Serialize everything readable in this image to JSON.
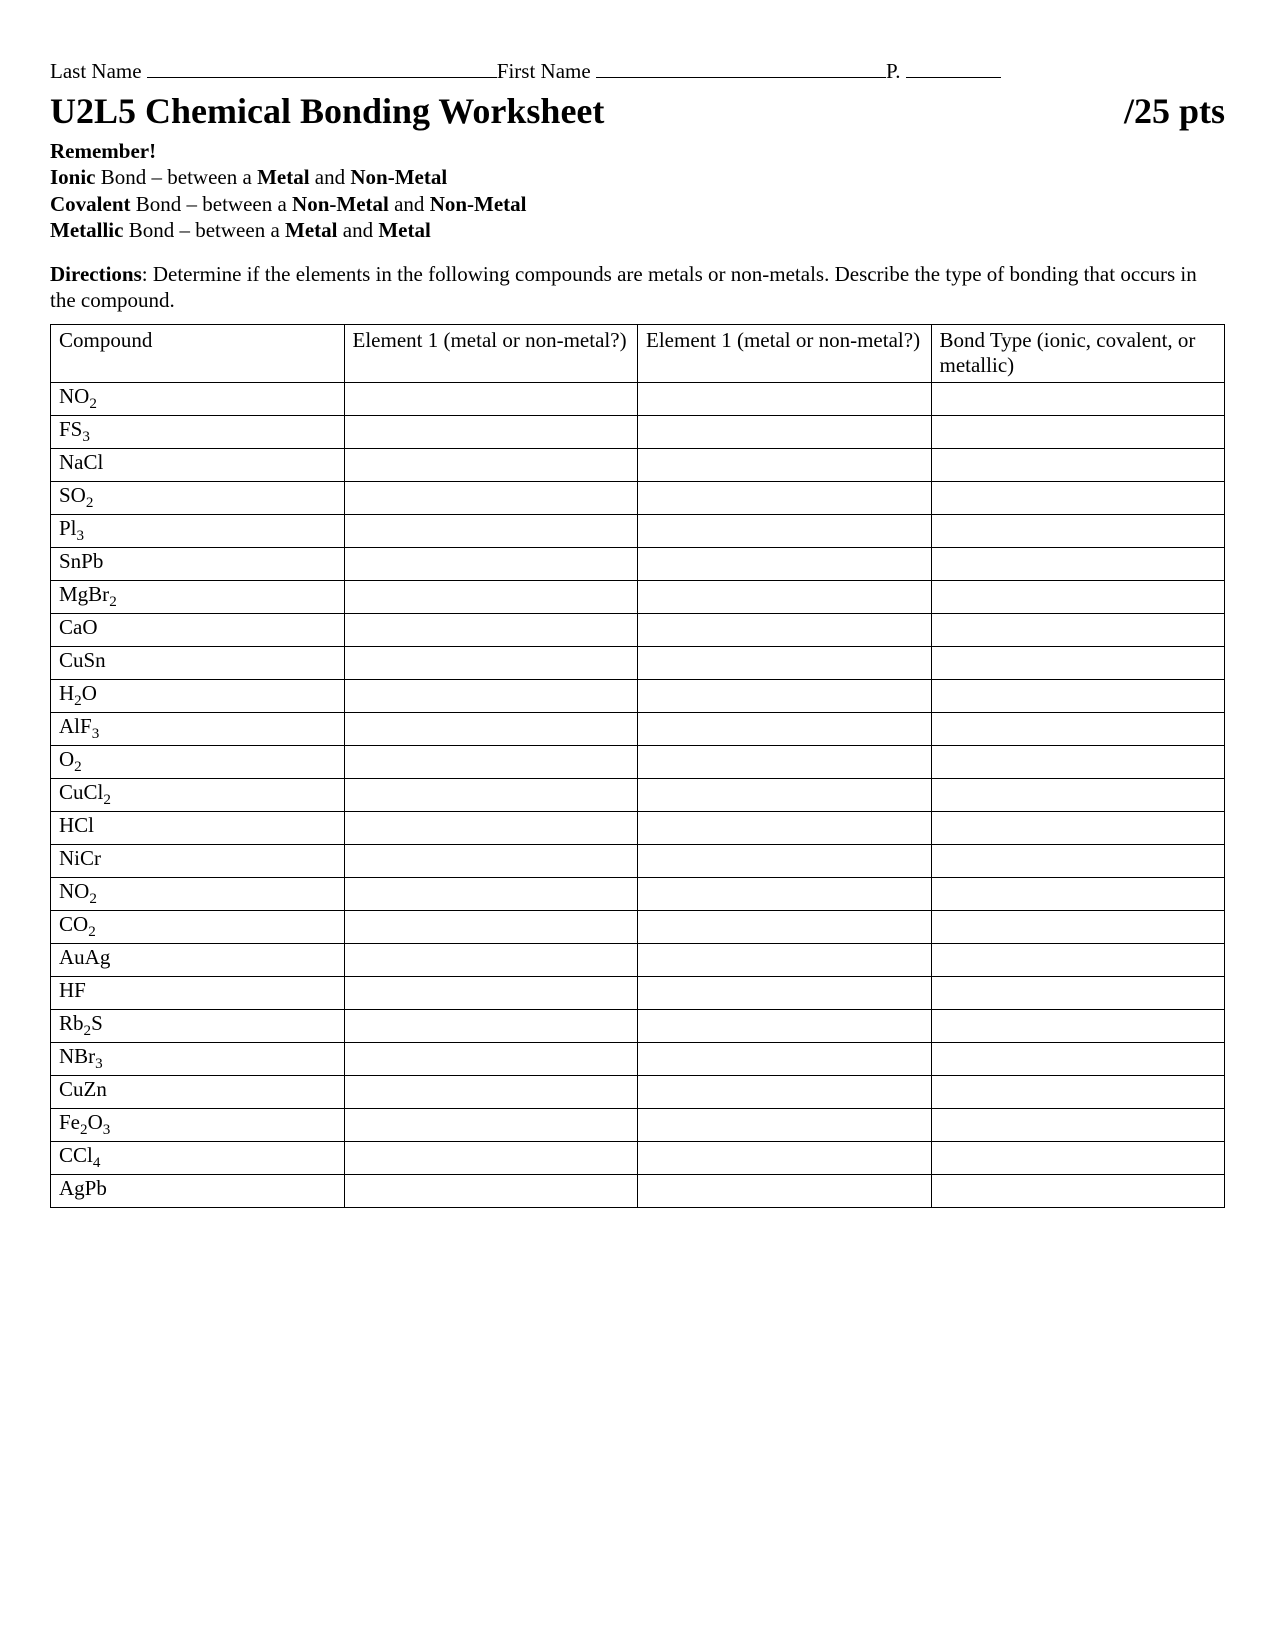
{
  "header": {
    "last_name_label": "Last Name",
    "first_name_label": "First Name",
    "period_label": "P."
  },
  "title": {
    "main": "U2L5 Chemical Bonding Worksheet",
    "points": "/25 pts"
  },
  "reminder": {
    "heading": "Remember!",
    "ionic_bold": "Ionic",
    "ionic_rest": " Bond – between a ",
    "ionic_b1": "Metal",
    "ionic_mid": " and ",
    "ionic_b2": "Non-Metal",
    "covalent_bold": "Covalent",
    "covalent_rest": " Bond – between a ",
    "covalent_b1": "Non-Metal",
    "covalent_mid": " and ",
    "covalent_b2": "Non-Metal",
    "metallic_bold": "Metallic",
    "metallic_rest": " Bond – between a ",
    "metallic_b1": "Metal",
    "metallic_mid": " and ",
    "metallic_b2": "Metal"
  },
  "directions": {
    "bold": "Directions",
    "rest": ": Determine if the elements in the following compounds are metals or non-metals.  Describe the type of bonding that occurs in the compound."
  },
  "table": {
    "columns": [
      "Compound",
      "Element 1 (metal or non-metal?)",
      "Element 1 (metal or non-metal?)",
      "Bond Type (ionic, covalent, or metallic)"
    ],
    "rows": [
      {
        "pre": "NO",
        "sub": "2",
        "post": ""
      },
      {
        "pre": "FS",
        "sub": "3",
        "post": ""
      },
      {
        "pre": "NaCl",
        "sub": "",
        "post": ""
      },
      {
        "pre": "SO",
        "sub": "2",
        "post": ""
      },
      {
        "pre": "Pl",
        "sub": "3",
        "post": ""
      },
      {
        "pre": "SnPb",
        "sub": "",
        "post": ""
      },
      {
        "pre": "MgBr",
        "sub": "2",
        "post": ""
      },
      {
        "pre": "CaO",
        "sub": "",
        "post": ""
      },
      {
        "pre": "CuSn",
        "sub": "",
        "post": ""
      },
      {
        "pre": "H",
        "sub": "2",
        "post": "O"
      },
      {
        "pre": "AlF",
        "sub": "3",
        "post": ""
      },
      {
        "pre": "O",
        "sub": "2",
        "post": ""
      },
      {
        "pre": "CuCl",
        "sub": "2",
        "post": ""
      },
      {
        "pre": "HCl",
        "sub": "",
        "post": ""
      },
      {
        "pre": "NiCr",
        "sub": "",
        "post": ""
      },
      {
        "pre": "NO",
        "sub": "2",
        "post": ""
      },
      {
        "pre": "CO",
        "sub": "2",
        "post": ""
      },
      {
        "pre": "AuAg",
        "sub": "",
        "post": ""
      },
      {
        "pre": "HF",
        "sub": "",
        "post": ""
      },
      {
        "pre": "Rb",
        "sub": "2",
        "post": "S"
      },
      {
        "pre": "NBr",
        "sub": "3",
        "post": ""
      },
      {
        "pre": "CuZn",
        "sub": "",
        "post": ""
      },
      {
        "pre": "Fe",
        "sub": "2",
        "post": "O",
        "sub2": "3"
      },
      {
        "pre": "CCl",
        "sub": "4",
        "post": ""
      },
      {
        "pre": "AgPb",
        "sub": "",
        "post": ""
      }
    ]
  }
}
